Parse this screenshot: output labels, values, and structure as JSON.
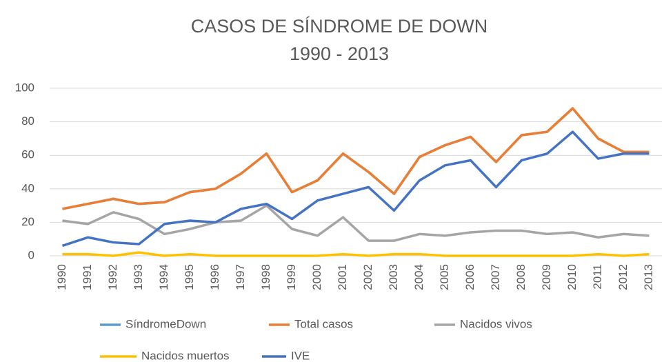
{
  "chart_data": {
    "type": "line",
    "title": "CASOS DE SÍNDROME DE DOWN",
    "subtitle": "1990 - 2013",
    "categories": [
      "1990",
      "1991",
      "1992",
      "1993",
      "1994",
      "1995",
      "1996",
      "1997",
      "1998",
      "1999",
      "2000",
      "2001",
      "2002",
      "2003",
      "2004",
      "2005",
      "2006",
      "2007",
      "2008",
      "2009",
      "2010",
      "2011",
      "2012",
      "2013"
    ],
    "series": [
      {
        "name": "SíndromeDown",
        "color": "#5b9bd5",
        "values": [
          28,
          31,
          34,
          31,
          32,
          38,
          40,
          49,
          61,
          38,
          45,
          61,
          50,
          37,
          59,
          66,
          71,
          56,
          72,
          74,
          88,
          70,
          62,
          62
        ]
      },
      {
        "name": "Total casos",
        "color": "#ed7d31",
        "values": [
          28,
          31,
          34,
          31,
          32,
          38,
          40,
          49,
          61,
          38,
          45,
          61,
          50,
          37,
          59,
          66,
          71,
          56,
          72,
          74,
          88,
          70,
          62,
          62
        ]
      },
      {
        "name": "Nacidos vivos",
        "color": "#a5a5a5",
        "values": [
          21,
          19,
          26,
          22,
          13,
          16,
          20,
          21,
          30,
          16,
          12,
          23,
          9,
          9,
          13,
          12,
          14,
          15,
          15,
          13,
          14,
          11,
          13,
          12
        ]
      },
      {
        "name": "Nacidos muertos",
        "color": "#ffc000",
        "values": [
          1,
          1,
          0,
          2,
          0,
          1,
          0,
          0,
          0,
          0,
          0,
          1,
          0,
          1,
          1,
          0,
          0,
          0,
          0,
          0,
          0,
          1,
          0,
          1
        ]
      },
      {
        "name": "IVE",
        "color": "#4472c4",
        "values": [
          6,
          11,
          8,
          7,
          19,
          21,
          20,
          28,
          31,
          22,
          33,
          37,
          41,
          27,
          45,
          54,
          57,
          41,
          57,
          61,
          74,
          58,
          61,
          61
        ]
      }
    ],
    "ylim": [
      0,
      100
    ],
    "yticks": [
      0,
      20,
      40,
      60,
      80,
      100
    ],
    "grid": true
  }
}
